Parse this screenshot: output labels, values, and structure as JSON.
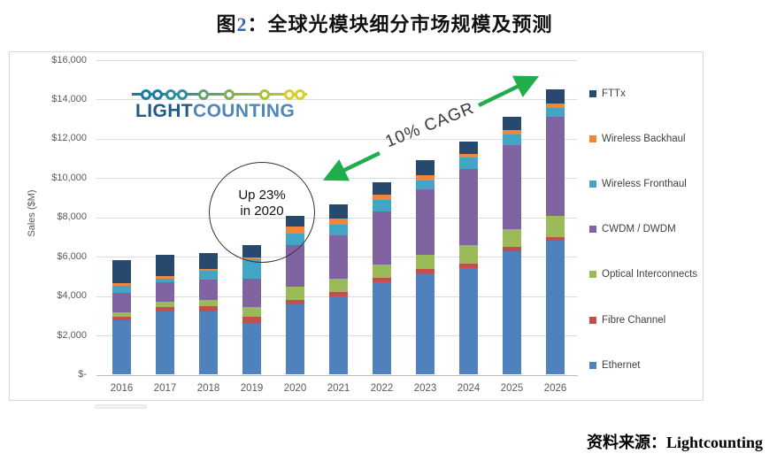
{
  "title": {
    "prefix": "图",
    "number": "2",
    "rest": "：全球光模块细分市场规模及预测"
  },
  "logo": {
    "part1": "LIGHT",
    "part2": "COUNTING"
  },
  "annotations": {
    "circle_line1": "Up 23%",
    "circle_line2": "in 2020",
    "cagr_label": "10% CAGR",
    "arrow_color": "#1fae4b"
  },
  "source": {
    "label_cn": "资料来源：",
    "label_en": "Lightcounting"
  },
  "chart_data": {
    "type": "bar",
    "stacked": true,
    "ylabel": "Sales ($M)",
    "ylim": [
      0,
      16000
    ],
    "ytick_step": 2000,
    "ytick_labels": [
      "$-",
      "$2,000",
      "$4,000",
      "$6,000",
      "$8,000",
      "$10,000",
      "$12,000",
      "$14,000",
      "$16,000"
    ],
    "grid": true,
    "legend_position": "right",
    "categories": [
      "2016",
      "2017",
      "2018",
      "2019",
      "2020",
      "2021",
      "2022",
      "2023",
      "2024",
      "2025",
      "2026"
    ],
    "series": [
      {
        "name": "Ethernet",
        "color": "#4f81bd",
        "values": [
          2750,
          3200,
          3240,
          2640,
          3570,
          3985,
          4720,
          5170,
          5425,
          6290,
          6830
        ]
      },
      {
        "name": "Fibre Channel",
        "color": "#c0504d",
        "values": [
          200,
          225,
          255,
          315,
          225,
          210,
          225,
          225,
          210,
          200,
          180
        ]
      },
      {
        "name": "Optical Interconnects",
        "color": "#9bbb59",
        "values": [
          210,
          300,
          300,
          510,
          675,
          690,
          675,
          720,
          960,
          900,
          1080
        ]
      },
      {
        "name": "CWDM / DWDM",
        "color": "#8064a2",
        "values": [
          990,
          975,
          1050,
          1425,
          2125,
          2200,
          2670,
          3300,
          3865,
          4295,
          5030
        ]
      },
      {
        "name": "Wireless Fronthaul",
        "color": "#42a5c5",
        "values": [
          380,
          180,
          450,
          970,
          600,
          555,
          600,
          480,
          570,
          540,
          450
        ]
      },
      {
        "name": "Wireless Backhaul",
        "color": "#f0863c",
        "values": [
          140,
          120,
          105,
          120,
          345,
          300,
          255,
          270,
          210,
          210,
          210
        ]
      },
      {
        "name": "FTTx",
        "color": "#27496d",
        "values": [
          1140,
          1100,
          795,
          630,
          555,
          705,
          645,
          750,
          600,
          690,
          720
        ]
      }
    ],
    "approx_totals": [
      5800,
      6100,
      6200,
      6610,
      8100,
      8650,
      9790,
      10915,
      11840,
      13125,
      14500
    ],
    "logo_dot_colors": [
      "#1a7ca8",
      "#1a7ca8",
      "#2f8f9e",
      "#2f8f9e",
      "#62a46c",
      "#7fb054",
      "#a9c13b",
      "#d9ce2c",
      "#d9ce2c"
    ]
  }
}
